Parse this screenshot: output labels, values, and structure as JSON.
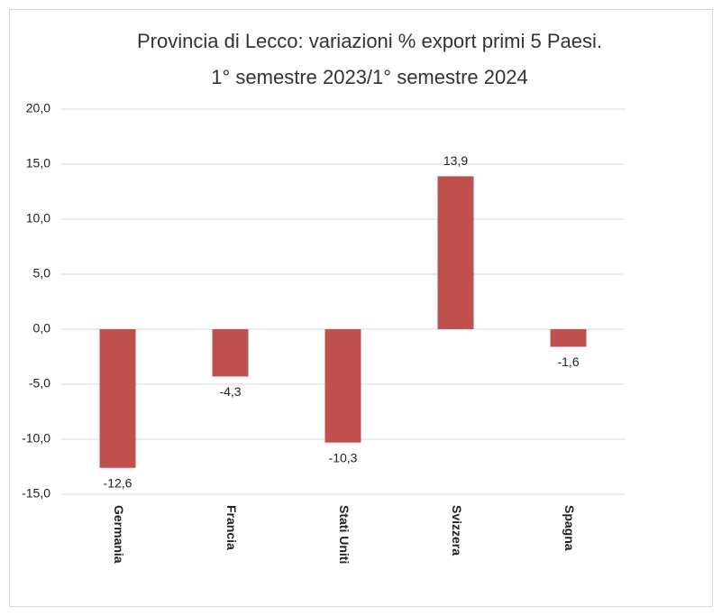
{
  "chart_data": {
    "type": "bar",
    "title": "Provincia di Lecco: variazioni % export primi 5 Paesi.",
    "subtitle": "1° semestre 2023/1° semestre 2024",
    "categories": [
      "Germania",
      "Francia",
      "Stati Uniti",
      "Svizzera",
      "Spagna"
    ],
    "values": [
      -12.6,
      -4.3,
      -10.3,
      13.9,
      -1.6
    ],
    "value_labels": [
      "-12,6",
      "-4,3",
      "-10,3",
      "13,9",
      "-1,6"
    ],
    "color": "#c0504d",
    "ylim": [
      -15,
      20
    ],
    "yticks": [
      {
        "value": -15,
        "label": "-15,0"
      },
      {
        "value": -10,
        "label": "-10,0"
      },
      {
        "value": -5,
        "label": "-5,0"
      },
      {
        "value": 0,
        "label": "0,0"
      },
      {
        "value": 5,
        "label": "5,0"
      },
      {
        "value": 10,
        "label": "10,0"
      },
      {
        "value": 15,
        "label": "15,0"
      },
      {
        "value": 20,
        "label": "20,0"
      }
    ],
    "grid": true
  }
}
